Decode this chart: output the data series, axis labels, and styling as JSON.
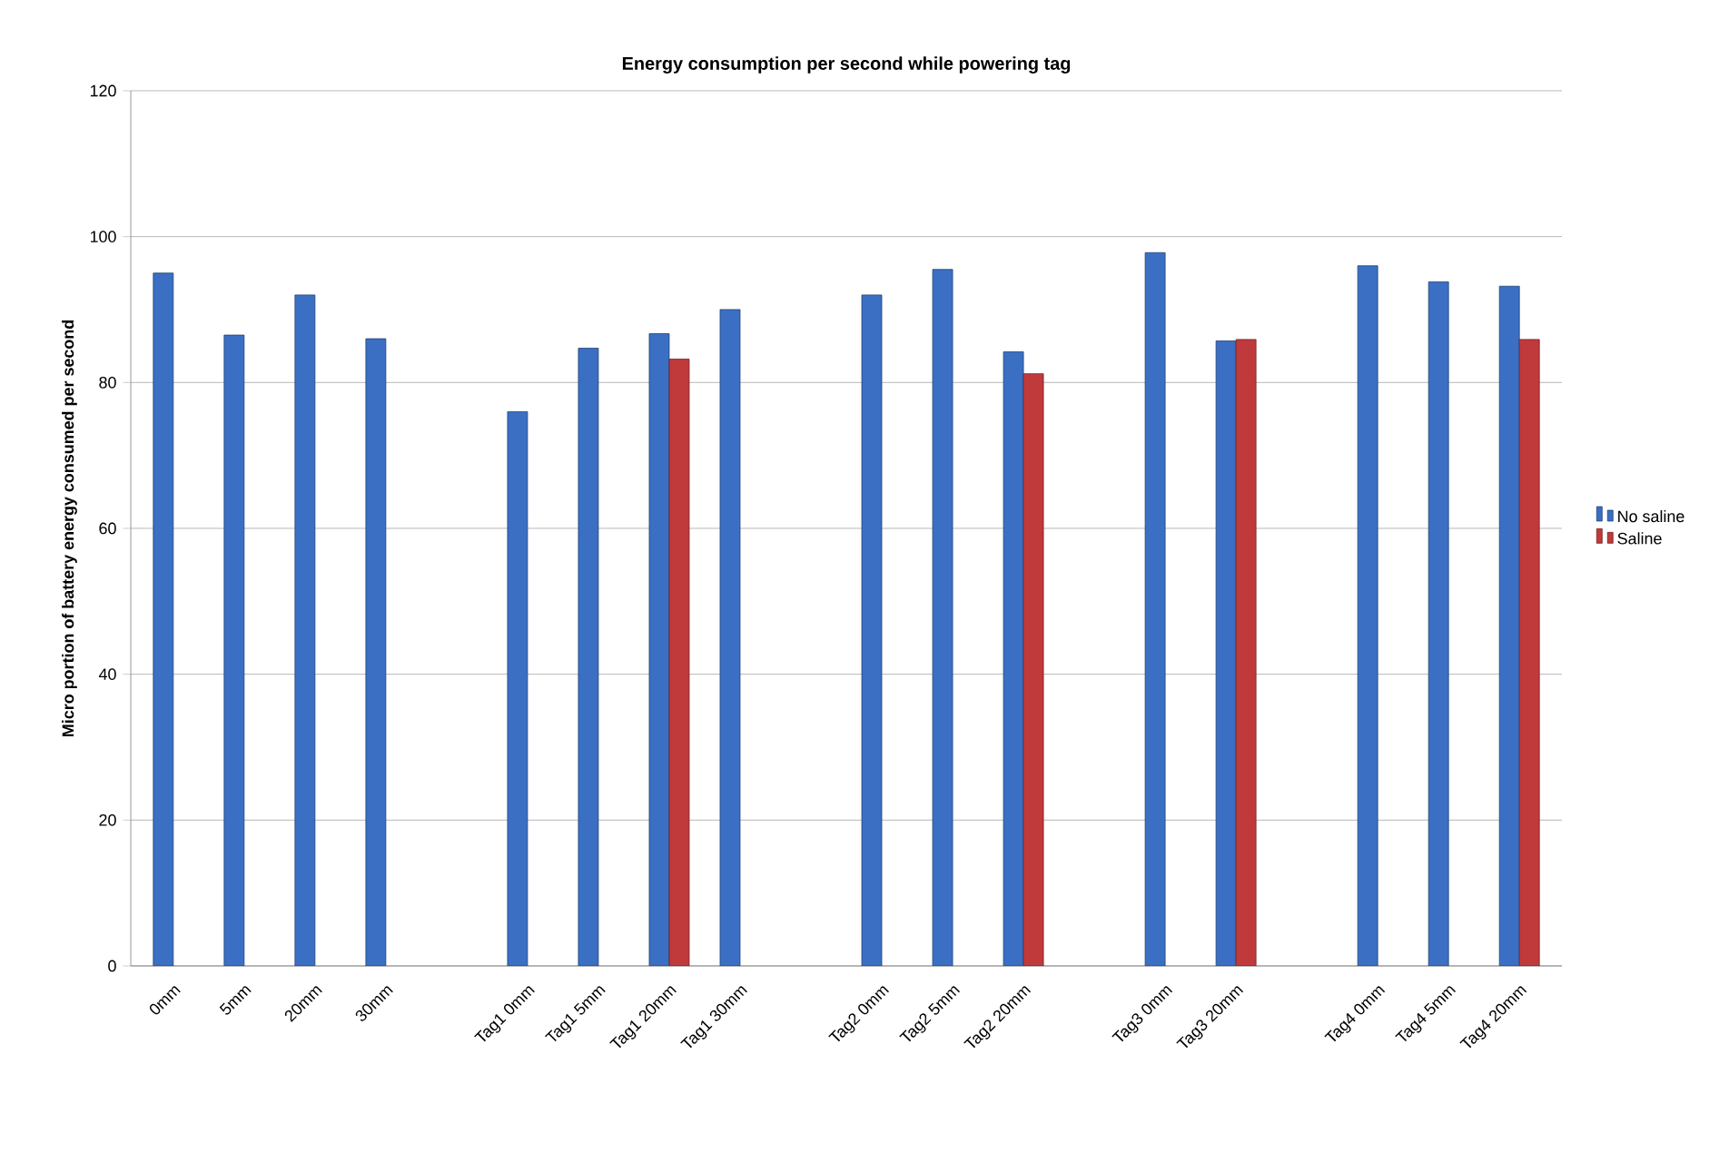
{
  "chart_data": {
    "type": "bar",
    "title": "Energy consumption per second while powering tag",
    "ylabel": "Micro portion of battery energy consumed per second",
    "categories": [
      "0mm",
      "5mm",
      "20mm",
      "30mm",
      null,
      "Tag1 0mm",
      "Tag1 5mm",
      "Tag1 20mm",
      "Tag1 30mm",
      null,
      "Tag2 0mm",
      "Tag2 5mm",
      "Tag2 20mm",
      null,
      "Tag3 0mm",
      "Tag3 20mm",
      null,
      "Tag4 0mm",
      "Tag4 5mm",
      "Tag4 20mm"
    ],
    "series": [
      {
        "name": "No saline",
        "color": "#3a6fc4",
        "values": [
          95,
          86.5,
          92,
          86,
          null,
          76,
          84.7,
          86.7,
          90,
          null,
          92,
          95.5,
          84.2,
          null,
          97.8,
          85.7,
          null,
          96,
          93.8,
          93.2
        ]
      },
      {
        "name": "Saline",
        "color": "#c0393b",
        "values": [
          null,
          null,
          null,
          null,
          null,
          null,
          null,
          83.2,
          null,
          null,
          null,
          null,
          81.2,
          null,
          null,
          85.9,
          null,
          null,
          null,
          85.9
        ]
      }
    ],
    "ylim": [
      0,
      120
    ],
    "yticks": [
      0,
      20,
      40,
      60,
      80,
      100,
      120
    ],
    "grid": "y",
    "legend": "right"
  }
}
